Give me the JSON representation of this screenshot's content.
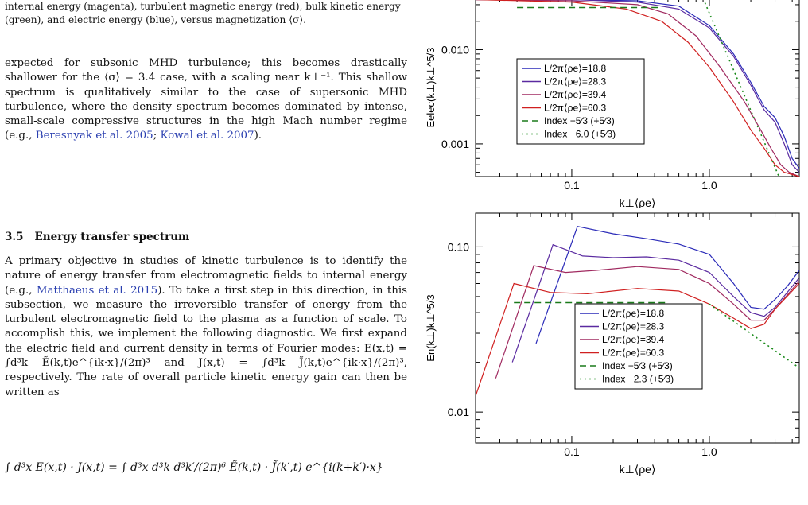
{
  "caption_text": "internal energy (magenta), turbulent magnetic energy (red), bulk kinetic energy (green), and electric energy (blue), versus magnetization ⟨σ⟩.",
  "para1": "expected for subsonic MHD turbulence; this becomes drastically shallower for the ⟨σ⟩ = 3.4 case, with a scaling near k⊥⁻¹. This shallow spectrum is qualitatively similar to the case of supersonic MHD turbulence, where the density spectrum becomes dominated by intense, small-scale compressive structures in the high Mach number regime (e.g., ",
  "para1_cite1": "Beresnyak et al. 2005",
  "para1_sep": "; ",
  "para1_cite2": "Kowal et al. 2007",
  "para1_end": ").",
  "section_number": "3.5",
  "section_title": "Energy transfer spectrum",
  "para2_a": "A primary objective in studies of kinetic turbulence is to identify the nature of energy transfer from electromagnetic fields to internal energy (e.g., ",
  "para2_cite": "Matthaeus et al. 2015",
  "para2_b": "). To take a first step in this direction, in this subsection, we measure the irreversible transfer of energy from the turbulent electromagnetic field to the plasma as a function of scale. To accomplish this, we implement the following diagnostic. We first expand the electric field and current density in terms of Fourier modes: E(x,t) = ∫d³k Ẽ(k,t)e^{ik·x}/(2π)³ and J(x,t) = ∫d³k J̃(k,t)e^{ik·x}/(2π)³, respectively. The rate of overall particle kinetic energy gain can then be written as",
  "equation": "∫ d³x E(x,t) · J(x,t) = ∫ d³x d³k d³k′/(2π)⁶ Ẽ(k,t) · J̃(k′,t) e^{i(k+k′)·x}",
  "chart_data": [
    {
      "type": "line",
      "log_x": true,
      "log_y": true,
      "xlabel": "k⊥⟨ρe⟩",
      "ylabel": "Eelec(k⊥)k⊥^5/3",
      "xlim": [
        0.02,
        4.5
      ],
      "ylim": [
        0.00045,
        0.035
      ],
      "x_ticks": [
        "0.1",
        "1.0"
      ],
      "y_ticks": [
        "0.010",
        "0.001"
      ],
      "legend_position": "left-center",
      "series": [
        {
          "name": "L/2π⟨ρe⟩=18.8",
          "color": "#2a2ab8",
          "style": "solid",
          "x": [
            0.02,
            0.1,
            0.3,
            0.6,
            1.0,
            1.5,
            2.0,
            2.5,
            3.0,
            3.5,
            4.0,
            4.5
          ],
          "y": [
            0.034,
            0.034,
            0.033,
            0.029,
            0.018,
            0.009,
            0.0045,
            0.0025,
            0.0019,
            0.0012,
            0.0007,
            0.00055
          ]
        },
        {
          "name": "L/2π⟨ρe⟩=28.3",
          "color": "#5a2aa0",
          "style": "solid",
          "x": [
            0.02,
            0.1,
            0.3,
            0.6,
            1.0,
            1.5,
            2.0,
            2.5,
            3.0,
            3.5,
            4.0,
            4.5
          ],
          "y": [
            0.034,
            0.034,
            0.032,
            0.027,
            0.017,
            0.0085,
            0.0042,
            0.0023,
            0.0017,
            0.001,
            0.0006,
            0.0005
          ]
        },
        {
          "name": "L/2π⟨ρe⟩=39.4",
          "color": "#a02a60",
          "style": "solid",
          "x": [
            0.02,
            0.1,
            0.3,
            0.5,
            0.8,
            1.2,
            1.8,
            2.3,
            2.8,
            3.3,
            3.8,
            4.5
          ],
          "y": [
            0.034,
            0.033,
            0.03,
            0.024,
            0.014,
            0.0065,
            0.0028,
            0.0015,
            0.0009,
            0.0006,
            0.0005,
            0.00045
          ]
        },
        {
          "name": "L/2π⟨ρe⟩=60.3",
          "color": "#d02020",
          "style": "solid",
          "x": [
            0.02,
            0.1,
            0.25,
            0.45,
            0.7,
            1.0,
            1.5,
            2.0,
            2.5,
            3.0,
            3.5,
            4.5
          ],
          "y": [
            0.034,
            0.032,
            0.027,
            0.02,
            0.012,
            0.0065,
            0.0028,
            0.0014,
            0.0009,
            0.0006,
            0.0005,
            0.00045
          ]
        },
        {
          "name": "Index −5⁄3 (+5⁄3)",
          "color": "#1a7a1a",
          "style": "dashed",
          "x": [
            0.04,
            0.45
          ],
          "y": [
            0.028,
            0.028
          ]
        },
        {
          "name": "Index −6.0 (+5⁄3)",
          "color": "#1a8a1a",
          "style": "dotted",
          "x": [
            0.9,
            3.2
          ],
          "y": [
            0.035,
            0.00045
          ]
        }
      ]
    },
    {
      "type": "line",
      "log_x": true,
      "log_y": true,
      "xlabel": "k⊥⟨ρe⟩",
      "ylabel": "En(k⊥)k⊥^5/3",
      "xlim": [
        0.02,
        4.5
      ],
      "ylim": [
        0.0065,
        0.16
      ],
      "x_ticks": [
        "0.1",
        "1.0"
      ],
      "y_ticks": [
        "0.10",
        "0.01"
      ],
      "legend_position": "right-center",
      "series": [
        {
          "name": "L/2π⟨ρe⟩=18.8",
          "color": "#2a2ab8",
          "style": "solid",
          "x": [
            0.055,
            0.11,
            0.2,
            0.35,
            0.6,
            1.0,
            1.5,
            2.0,
            2.5,
            3.0,
            3.7,
            4.5
          ],
          "y": [
            0.026,
            0.133,
            0.12,
            0.112,
            0.104,
            0.09,
            0.06,
            0.043,
            0.042,
            0.048,
            0.058,
            0.072
          ]
        },
        {
          "name": "L/2π⟨ρe⟩=28.3",
          "color": "#5a2aa0",
          "style": "solid",
          "x": [
            0.037,
            0.073,
            0.12,
            0.2,
            0.35,
            0.6,
            1.0,
            1.5,
            2.0,
            2.5,
            3.0,
            4.5
          ],
          "y": [
            0.02,
            0.103,
            0.088,
            0.086,
            0.087,
            0.083,
            0.07,
            0.05,
            0.04,
            0.038,
            0.043,
            0.065
          ]
        },
        {
          "name": "L/2π⟨ρe⟩=39.4",
          "color": "#a02a60",
          "style": "solid",
          "x": [
            0.028,
            0.053,
            0.09,
            0.15,
            0.3,
            0.6,
            1.0,
            1.5,
            2.0,
            2.5,
            3.0,
            4.5
          ],
          "y": [
            0.016,
            0.077,
            0.07,
            0.072,
            0.076,
            0.073,
            0.06,
            0.045,
            0.036,
            0.036,
            0.042,
            0.062
          ]
        },
        {
          "name": "L/2π⟨ρe⟩=60.3",
          "color": "#d02020",
          "style": "solid",
          "x": [
            0.02,
            0.038,
            0.07,
            0.13,
            0.3,
            0.6,
            1.0,
            1.5,
            2.0,
            2.5,
            3.0,
            4.5
          ],
          "y": [
            0.0125,
            0.06,
            0.053,
            0.052,
            0.056,
            0.054,
            0.045,
            0.037,
            0.032,
            0.034,
            0.042,
            0.06
          ]
        },
        {
          "name": "Index −5⁄3 (+5⁄3)",
          "color": "#1a7a1a",
          "style": "dashed",
          "x": [
            0.038,
            0.5
          ],
          "y": [
            0.046,
            0.046
          ]
        },
        {
          "name": "Index −2.3 (+5⁄3)",
          "color": "#1a8a1a",
          "style": "dotted",
          "x": [
            1.0,
            4.5
          ],
          "y": [
            0.045,
            0.0185
          ]
        }
      ]
    }
  ]
}
